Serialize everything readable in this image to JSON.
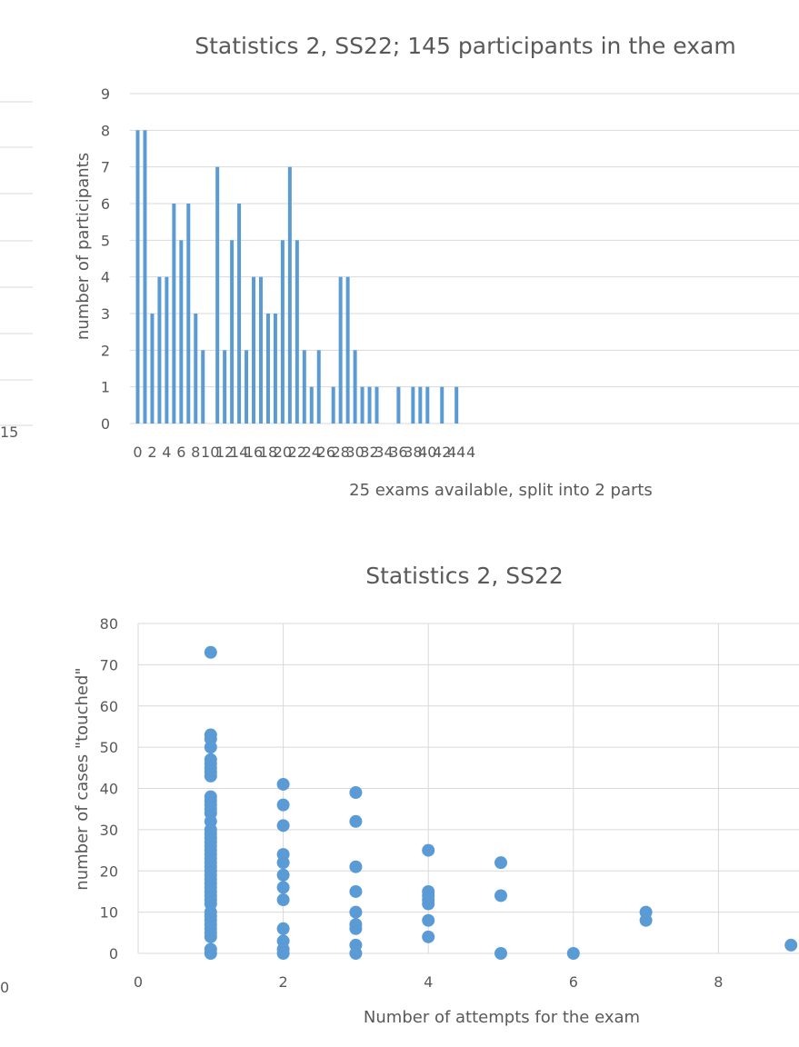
{
  "chart_data": [
    {
      "type": "bar",
      "title": "Statistics 2, SS22; 145 participants in the exam",
      "xlabel": "25 exams available, split into 2 parts",
      "ylabel": "number of participants",
      "ylim": [
        0,
        9
      ],
      "yticks": [
        0,
        1,
        2,
        3,
        4,
        5,
        6,
        7,
        8,
        9
      ],
      "xtick_labels": [
        "0",
        "2",
        "4",
        "6",
        "8",
        "10",
        "12",
        "14",
        "16",
        "18",
        "20",
        "22",
        "24",
        "26",
        "28",
        "30",
        "32",
        "34",
        "36",
        "38",
        "40",
        "42",
        "44",
        "4"
      ],
      "grid": "horizontal",
      "color": "#5b9bd5",
      "categories": [
        0,
        1,
        2,
        3,
        4,
        5,
        6,
        7,
        8,
        9,
        10,
        11,
        12,
        13,
        14,
        15,
        16,
        17,
        18,
        19,
        20,
        21,
        22,
        23,
        24,
        25,
        26,
        27,
        28,
        29,
        30,
        31,
        32,
        33,
        34,
        35,
        36,
        37,
        38,
        39,
        40,
        41,
        42,
        43,
        44,
        45
      ],
      "values": [
        8,
        8,
        3,
        4,
        4,
        6,
        5,
        6,
        3,
        2,
        0,
        7,
        2,
        5,
        6,
        2,
        4,
        4,
        3,
        3,
        5,
        7,
        5,
        2,
        1,
        2,
        0,
        1,
        4,
        4,
        2,
        1,
        1,
        1,
        0,
        0,
        1,
        0,
        1,
        1,
        1,
        0,
        1,
        0,
        1,
        0
      ]
    },
    {
      "type": "scatter",
      "title": "Statistics 2, SS22",
      "xlabel": "Number of attempts for the exam",
      "ylabel": "number of cases \"touched\"",
      "xlim": [
        0,
        9
      ],
      "ylim": [
        0,
        80
      ],
      "xticks": [
        0,
        2,
        4,
        6,
        8
      ],
      "yticks": [
        0,
        10,
        20,
        30,
        40,
        50,
        60,
        70,
        80
      ],
      "grid": "both",
      "color": "#5b9bd5",
      "points": [
        [
          1,
          73
        ],
        [
          1,
          53
        ],
        [
          1,
          52
        ],
        [
          1,
          50
        ],
        [
          1,
          47
        ],
        [
          1,
          46
        ],
        [
          1,
          45
        ],
        [
          1,
          44
        ],
        [
          1,
          43
        ],
        [
          1,
          38
        ],
        [
          1,
          37
        ],
        [
          1,
          36
        ],
        [
          1,
          35
        ],
        [
          1,
          34
        ],
        [
          1,
          32
        ],
        [
          1,
          30
        ],
        [
          1,
          29
        ],
        [
          1,
          28
        ],
        [
          1,
          27
        ],
        [
          1,
          26
        ],
        [
          1,
          25
        ],
        [
          1,
          24
        ],
        [
          1,
          23
        ],
        [
          1,
          22
        ],
        [
          1,
          21
        ],
        [
          1,
          20
        ],
        [
          1,
          19
        ],
        [
          1,
          18
        ],
        [
          1,
          17
        ],
        [
          1,
          16
        ],
        [
          1,
          15
        ],
        [
          1,
          14
        ],
        [
          1,
          13
        ],
        [
          1,
          12
        ],
        [
          1,
          10
        ],
        [
          1,
          9
        ],
        [
          1,
          8
        ],
        [
          1,
          7
        ],
        [
          1,
          6
        ],
        [
          1,
          5
        ],
        [
          1,
          4
        ],
        [
          1,
          1
        ],
        [
          1,
          0
        ],
        [
          2,
          41
        ],
        [
          2,
          36
        ],
        [
          2,
          31
        ],
        [
          2,
          24
        ],
        [
          2,
          22
        ],
        [
          2,
          19
        ],
        [
          2,
          16
        ],
        [
          2,
          13
        ],
        [
          2,
          6
        ],
        [
          2,
          3
        ],
        [
          2,
          1
        ],
        [
          2,
          0
        ],
        [
          3,
          39
        ],
        [
          3,
          32
        ],
        [
          3,
          21
        ],
        [
          3,
          15
        ],
        [
          3,
          10
        ],
        [
          3,
          7
        ],
        [
          3,
          6
        ],
        [
          3,
          2
        ],
        [
          3,
          0
        ],
        [
          4,
          25
        ],
        [
          4,
          15
        ],
        [
          4,
          14
        ],
        [
          4,
          13
        ],
        [
          4,
          12
        ],
        [
          4,
          8
        ],
        [
          4,
          4
        ],
        [
          5,
          22
        ],
        [
          5,
          14
        ],
        [
          5,
          0
        ],
        [
          6,
          0
        ],
        [
          7,
          10
        ],
        [
          7,
          8
        ],
        [
          9,
          2
        ]
      ]
    },
    {
      "type": "partial",
      "xtick_labels": [
        "15",
        "0"
      ]
    }
  ]
}
